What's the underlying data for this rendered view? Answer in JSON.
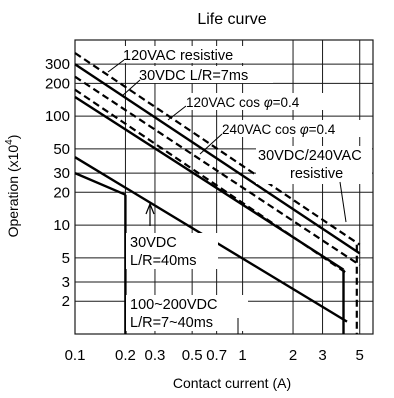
{
  "chart_data": {
    "type": "line",
    "title": "Life curve",
    "xlabel": "Contact current (A)",
    "ylabel": "Operation (x10",
    "ylabel_sup": "4",
    "ylabel_close": ")",
    "x_scale": "log",
    "y_scale": "log",
    "xlim": [
      0.1,
      6
    ],
    "ylim": [
      1,
      500
    ],
    "grid": true,
    "x_ticks": [
      {
        "v": 0.1,
        "label": "0.1"
      },
      {
        "v": 0.2,
        "label": "0.2"
      },
      {
        "v": 0.3,
        "label": "0.3"
      },
      {
        "v": 0.5,
        "label": "0.5"
      },
      {
        "v": 0.7,
        "label": "0.7"
      },
      {
        "v": 1,
        "label": "1"
      },
      {
        "v": 2,
        "label": "2"
      },
      {
        "v": 3,
        "label": "3"
      },
      {
        "v": 5,
        "label": "5"
      }
    ],
    "y_ticks": [
      {
        "v": 2,
        "label": "2"
      },
      {
        "v": 3,
        "label": "3"
      },
      {
        "v": 5,
        "label": "5"
      },
      {
        "v": 10,
        "label": "10"
      },
      {
        "v": 20,
        "label": "20"
      },
      {
        "v": 30,
        "label": "30"
      },
      {
        "v": 50,
        "label": "50"
      },
      {
        "v": 100,
        "label": "100"
      },
      {
        "v": 200,
        "label": "200"
      },
      {
        "v": 300,
        "label": "300"
      }
    ],
    "x_grid": [
      0.2,
      0.3,
      0.5,
      0.7,
      1,
      2,
      3,
      5
    ],
    "y_grid": [
      2,
      3,
      5,
      10,
      20,
      30,
      50,
      100,
      200,
      300
    ],
    "series": [
      {
        "name": "120VAC resistive",
        "style": "dashed",
        "x": [
          0.1,
          5
        ],
        "y": [
          380,
          6.6
        ]
      },
      {
        "name": "30VDC L/R=7ms",
        "style": "solid",
        "x": [
          0.1,
          5
        ],
        "y": [
          300,
          5.5
        ]
      },
      {
        "name": "120VAC cos φ=0.4",
        "style": "dashed",
        "x": [
          0.1,
          5
        ],
        "y": [
          230,
          4.3
        ]
      },
      {
        "name": "240VAC cos φ=0.4",
        "style": "dashed",
        "x": [
          0.1,
          4.2
        ],
        "y": [
          175,
          3.6
        ]
      },
      {
        "name": "30VDC/240VAC resistive",
        "style": "solid",
        "x": [
          0.1,
          4
        ],
        "y": [
          150,
          3.9
        ]
      },
      {
        "name": "30VDC L/R=40ms",
        "style": "solid",
        "x": [
          0.1,
          4.2
        ],
        "y": [
          42,
          1.3
        ]
      },
      {
        "name": "100~200VDC L/R=7~40ms",
        "style": "solid",
        "x": [
          0.1,
          0.2
        ],
        "y": [
          30,
          19
        ]
      },
      {
        "name": "100~200VDC L/R=7~40ms vertical",
        "style": "solid",
        "x": [
          0.2,
          0.2
        ],
        "y": [
          19,
          1
        ]
      },
      {
        "name": "30VDC/240VAC resistive vertical",
        "style": "solid",
        "x": [
          4,
          4
        ],
        "y": [
          3.9,
          1
        ]
      },
      {
        "name": "120VAC resistive vertical",
        "style": "dashed",
        "x": [
          4.8,
          4.8
        ],
        "y": [
          6.6,
          1
        ]
      }
    ],
    "annotations": {
      "a1": "120VAC resistive",
      "a2": "30VDC L/R=7ms",
      "a3": "120VAC cos",
      "a4": "φ",
      "a5": "=0.4",
      "a6": "240VAC cos",
      "a7": "φ",
      "a8": "=0.4",
      "a9": "30VDC/240VAC",
      "a10": "resistive",
      "a11": "30VDC",
      "a12": "L/R=40ms",
      "a13": "100~200VDC",
      "a14": "L/R=7~40ms"
    }
  }
}
